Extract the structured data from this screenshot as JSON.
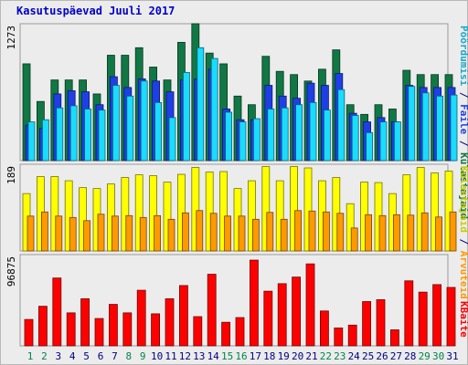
{
  "title": "Kasutuspäevad Juuli 2017",
  "legend": {
    "top": {
      "pageviews": "Pöördumisi",
      "sep1": " / ",
      "files": "Faile",
      "sep2": " / ",
      "hits": "Külastajaid"
    },
    "middle": {
      "sites": "Arvuteid",
      "sep": " / ",
      "visits": "Külastajaid"
    },
    "bottom": {
      "kbytes": "KBaite"
    }
  },
  "colors": {
    "hits": "#117744",
    "files": "#1f3fe6",
    "pageviews": "#19dcff",
    "visits": "#ffff00",
    "sites": "#ff9900",
    "kbytes": "#ff0000",
    "weekday_label": "#000080",
    "weekend_label": "#00844c",
    "panel_bg": "#ececec",
    "title": "#0000c8"
  },
  "chart_data": [
    {
      "type": "bar",
      "panel": "top",
      "ymax_label": "1273",
      "ylim": [
        0,
        1273
      ],
      "categories": [
        "1",
        "2",
        "3",
        "4",
        "5",
        "6",
        "7",
        "8",
        "9",
        "10",
        "11",
        "12",
        "13",
        "14",
        "15",
        "16",
        "17",
        "18",
        "19",
        "20",
        "21",
        "22",
        "23",
        "24",
        "25",
        "26",
        "27",
        "28",
        "29",
        "30",
        "31"
      ],
      "weekend": [
        "1",
        "2",
        "8",
        "9",
        "15",
        "16",
        "22",
        "23",
        "29",
        "30"
      ],
      "series": [
        {
          "name": "Külastajaid",
          "key": "hits",
          "values": [
            900,
            550,
            750,
            750,
            750,
            620,
            980,
            980,
            1050,
            870,
            750,
            1100,
            1273,
            1000,
            900,
            600,
            520,
            970,
            830,
            800,
            740,
            850,
            1030,
            520,
            430,
            520,
            480,
            840,
            800,
            800,
            800
          ]
        },
        {
          "name": "Faile",
          "key": "files",
          "values": [
            330,
            300,
            620,
            650,
            640,
            520,
            780,
            680,
            760,
            740,
            640,
            750,
            760,
            850,
            480,
            380,
            380,
            700,
            600,
            580,
            720,
            700,
            810,
            440,
            360,
            400,
            360,
            700,
            680,
            680,
            680
          ]
        },
        {
          "name": "Pöördumisi",
          "key": "pageviews",
          "values": [
            360,
            380,
            490,
            510,
            480,
            470,
            700,
            600,
            740,
            540,
            400,
            820,
            1050,
            950,
            450,
            360,
            390,
            480,
            490,
            520,
            540,
            470,
            660,
            420,
            260,
            360,
            360,
            690,
            630,
            600,
            610
          ]
        }
      ]
    },
    {
      "type": "bar",
      "panel": "middle",
      "ymax_label": "189",
      "ylim": [
        0,
        189
      ],
      "categories": [
        "1",
        "2",
        "3",
        "4",
        "5",
        "6",
        "7",
        "8",
        "9",
        "10",
        "11",
        "12",
        "13",
        "14",
        "15",
        "16",
        "17",
        "18",
        "19",
        "20",
        "21",
        "22",
        "23",
        "24",
        "25",
        "26",
        "27",
        "28",
        "29",
        "30",
        "31"
      ],
      "series": [
        {
          "name": "Külastajaid",
          "key": "visits",
          "values": [
            125,
            162,
            162,
            153,
            138,
            136,
            146,
            160,
            166,
            164,
            150,
            167,
            182,
            172,
            173,
            136,
            153,
            184,
            153,
            184,
            181,
            153,
            160,
            103,
            150,
            149,
            125,
            166,
            182,
            170,
            174
          ]
        },
        {
          "name": "Arvuteid",
          "key": "sites",
          "values": [
            76,
            85,
            76,
            73,
            66,
            80,
            76,
            77,
            73,
            77,
            69,
            83,
            88,
            82,
            76,
            76,
            69,
            84,
            69,
            88,
            87,
            85,
            82,
            50,
            79,
            77,
            79,
            78,
            83,
            74,
            85
          ]
        }
      ]
    },
    {
      "type": "bar",
      "panel": "bottom",
      "ymax_label": "96875",
      "ylim": [
        0,
        96875
      ],
      "categories": [
        "1",
        "2",
        "3",
        "4",
        "5",
        "6",
        "7",
        "8",
        "9",
        "10",
        "11",
        "12",
        "13",
        "14",
        "15",
        "16",
        "17",
        "18",
        "19",
        "20",
        "21",
        "22",
        "23",
        "24",
        "25",
        "26",
        "27",
        "28",
        "29",
        "30",
        "31"
      ],
      "series": [
        {
          "name": "KBaite",
          "key": "kbytes",
          "values": [
            28000,
            42000,
            72000,
            35000,
            50000,
            29000,
            44000,
            35000,
            59000,
            34000,
            50000,
            64000,
            31000,
            76000,
            25000,
            30000,
            91000,
            58000,
            66000,
            73000,
            87000,
            37000,
            19000,
            22000,
            47000,
            49000,
            17000,
            69000,
            57000,
            65000,
            62000
          ]
        }
      ]
    }
  ]
}
